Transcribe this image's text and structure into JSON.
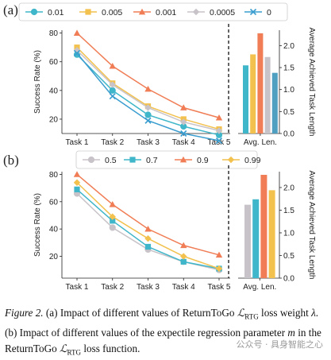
{
  "colors": {
    "teal": "#3fb6c9",
    "yellow": "#f2c14e",
    "orange": "#f07d55",
    "gray": "#c8c3c8",
    "blue": "#3a9dcf",
    "steel": "#4f9fc0"
  },
  "chart_data": [
    {
      "panel_label": "(a)",
      "type": "line",
      "categories": [
        "Task 1",
        "Task 2",
        "Task 3",
        "Task 4",
        "Task 5"
      ],
      "ylabel": "Success Rate (%)",
      "ylim": [
        10,
        82
      ],
      "yticks": [
        20,
        40,
        60,
        80
      ],
      "legend_position": "top",
      "series": [
        {
          "name": "0.01",
          "color": "#3fb6c9",
          "marker": "circle",
          "values": [
            65,
            40,
            23,
            15,
            9
          ]
        },
        {
          "name": "0.005",
          "color": "#f2c14e",
          "marker": "square",
          "values": [
            70,
            45,
            29,
            20,
            13
          ]
        },
        {
          "name": "0.001",
          "color": "#f07d55",
          "marker": "triangle",
          "values": [
            80,
            57,
            41,
            28,
            21
          ]
        },
        {
          "name": "0.0005",
          "color": "#c8c3c8",
          "marker": "diamond",
          "values": [
            68,
            44,
            28,
            18,
            12
          ]
        },
        {
          "name": "0",
          "color": "#3a9dcf",
          "marker": "x",
          "values": [
            66,
            36,
            19,
            10,
            5
          ]
        }
      ],
      "bar": {
        "xlabel": "Avg. Len.",
        "ylabel": "Average Achieved Task Length",
        "ylim": [
          0,
          2.35
        ],
        "yticks": [
          0.0,
          0.5,
          1.0,
          1.5,
          2.0
        ],
        "values": [
          1.55,
          1.8,
          2.28,
          1.74,
          1.38
        ],
        "colors": [
          "#3fb6c9",
          "#f2c14e",
          "#f07d55",
          "#c8c3c8",
          "#4f9fc0"
        ]
      }
    },
    {
      "panel_label": "(b)",
      "type": "line",
      "categories": [
        "Task 1",
        "Task 2",
        "Task 3",
        "Task 4",
        "Task 5"
      ],
      "ylabel": "Success Rate (%)",
      "ylim": [
        4,
        82
      ],
      "yticks": [
        20,
        40,
        60,
        80
      ],
      "legend_position": "top",
      "series": [
        {
          "name": "0.5",
          "color": "#c8c3c8",
          "marker": "circle",
          "values": [
            66,
            41,
            25,
            16,
            10
          ]
        },
        {
          "name": "0.7",
          "color": "#3fb6c9",
          "marker": "square",
          "values": [
            69,
            46,
            27,
            16,
            11
          ]
        },
        {
          "name": "0.9",
          "color": "#f07d55",
          "marker": "triangle",
          "values": [
            80,
            58,
            40,
            28,
            21
          ]
        },
        {
          "name": "0.99",
          "color": "#f2c14e",
          "marker": "diamond",
          "values": [
            74,
            49,
            33,
            20,
            11
          ]
        }
      ],
      "bar": {
        "xlabel": "Avg. Len.",
        "ylabel": "Average Achieved Task Length",
        "ylim": [
          0,
          2.35
        ],
        "yticks": [
          0.0,
          0.5,
          1.0,
          1.5,
          2.0
        ],
        "values": [
          1.62,
          1.74,
          2.28,
          1.94
        ],
        "colors": [
          "#c8c3c8",
          "#3fb6c9",
          "#f07d55",
          "#f2c14e"
        ]
      }
    }
  ],
  "caption": {
    "lead": "Figure 2.",
    "text_a": "(a) Impact of different values of ReturnToGo",
    "loss_sym": "ℒ",
    "loss_sub": "RTG",
    "text_a2": "loss weight",
    "lambda": "λ",
    "text_b": ". (b) Impact of different values of the expectile regression parameter",
    "m": "m",
    "text_b2": "in the ReturnToGo",
    "text_end": "loss function."
  },
  "watermark": "公众号 · 具身智能之心"
}
